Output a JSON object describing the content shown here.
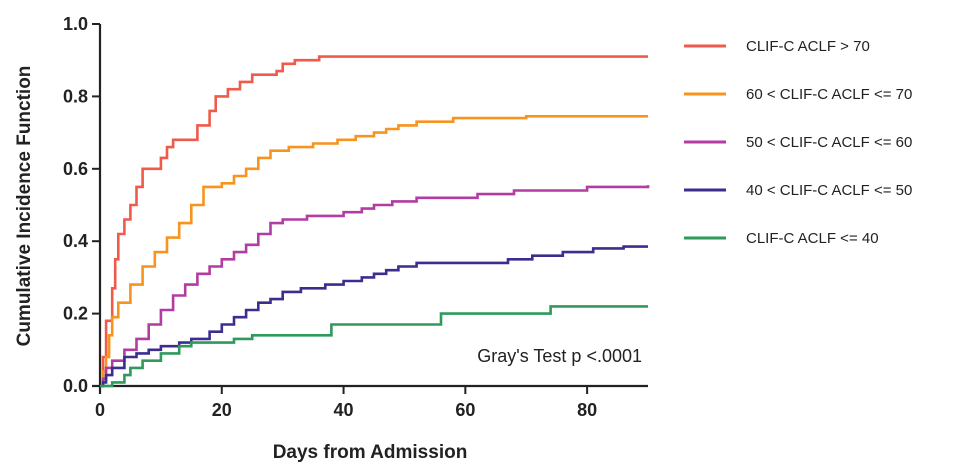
{
  "chart_data": {
    "type": "line",
    "step": true,
    "title": "",
    "xlabel": "Days from Admission",
    "ylabel": "Cumulative Incidence Function",
    "xlim": [
      0,
      90
    ],
    "ylim": [
      0,
      1.0
    ],
    "x_ticks": [
      0,
      20,
      40,
      60,
      80
    ],
    "y_ticks": [
      "0.0",
      "0.2",
      "0.4",
      "0.6",
      "0.8",
      "1.0"
    ],
    "grid": false,
    "legend_position": "right",
    "annotation": "Gray's Test p <.0001",
    "series": [
      {
        "name": "CLIF-C ACLF > 70",
        "color": "#ef5a4b",
        "points": [
          [
            0,
            0
          ],
          [
            0.5,
            0.08
          ],
          [
            1,
            0.18
          ],
          [
            2,
            0.27
          ],
          [
            2.5,
            0.35
          ],
          [
            3,
            0.42
          ],
          [
            4,
            0.46
          ],
          [
            5,
            0.5
          ],
          [
            6,
            0.55
          ],
          [
            7,
            0.6
          ],
          [
            9,
            0.6
          ],
          [
            10,
            0.63
          ],
          [
            11,
            0.66
          ],
          [
            12,
            0.68
          ],
          [
            15,
            0.68
          ],
          [
            16,
            0.72
          ],
          [
            18,
            0.76
          ],
          [
            19,
            0.8
          ],
          [
            21,
            0.82
          ],
          [
            23,
            0.84
          ],
          [
            25,
            0.86
          ],
          [
            29,
            0.87
          ],
          [
            30,
            0.89
          ],
          [
            32,
            0.9
          ],
          [
            36,
            0.91
          ],
          [
            90,
            0.91
          ]
        ]
      },
      {
        "name": "60 < CLIF-C ACLF <= 70",
        "color": "#f7941d",
        "points": [
          [
            0,
            0
          ],
          [
            0.5,
            0.04
          ],
          [
            1,
            0.08
          ],
          [
            1.5,
            0.14
          ],
          [
            2,
            0.19
          ],
          [
            3,
            0.23
          ],
          [
            5,
            0.28
          ],
          [
            7,
            0.33
          ],
          [
            9,
            0.37
          ],
          [
            11,
            0.41
          ],
          [
            13,
            0.45
          ],
          [
            15,
            0.5
          ],
          [
            17,
            0.55
          ],
          [
            20,
            0.56
          ],
          [
            22,
            0.58
          ],
          [
            24,
            0.6
          ],
          [
            26,
            0.63
          ],
          [
            28,
            0.65
          ],
          [
            31,
            0.66
          ],
          [
            35,
            0.67
          ],
          [
            39,
            0.68
          ],
          [
            42,
            0.69
          ],
          [
            45,
            0.7
          ],
          [
            47,
            0.71
          ],
          [
            49,
            0.72
          ],
          [
            52,
            0.73
          ],
          [
            58,
            0.74
          ],
          [
            70,
            0.745
          ],
          [
            90,
            0.745
          ]
        ]
      },
      {
        "name": "50 < CLIF-C ACLF <= 60",
        "color": "#b23ca2",
        "points": [
          [
            0,
            0
          ],
          [
            0.5,
            0.02
          ],
          [
            1,
            0.05
          ],
          [
            2,
            0.07
          ],
          [
            4,
            0.1
          ],
          [
            6,
            0.13
          ],
          [
            8,
            0.17
          ],
          [
            10,
            0.21
          ],
          [
            12,
            0.25
          ],
          [
            14,
            0.28
          ],
          [
            16,
            0.31
          ],
          [
            18,
            0.33
          ],
          [
            20,
            0.35
          ],
          [
            22,
            0.37
          ],
          [
            24,
            0.39
          ],
          [
            26,
            0.42
          ],
          [
            28,
            0.45
          ],
          [
            30,
            0.46
          ],
          [
            34,
            0.47
          ],
          [
            40,
            0.48
          ],
          [
            43,
            0.49
          ],
          [
            45,
            0.5
          ],
          [
            48,
            0.51
          ],
          [
            52,
            0.52
          ],
          [
            58,
            0.52
          ],
          [
            62,
            0.53
          ],
          [
            68,
            0.54
          ],
          [
            80,
            0.55
          ],
          [
            90,
            0.555
          ]
        ]
      },
      {
        "name": "40 < CLIF-C ACLF <= 50",
        "color": "#3a2f8f",
        "points": [
          [
            0,
            0
          ],
          [
            0.5,
            0.01
          ],
          [
            1,
            0.03
          ],
          [
            2,
            0.05
          ],
          [
            4,
            0.08
          ],
          [
            6,
            0.09
          ],
          [
            8,
            0.1
          ],
          [
            10,
            0.11
          ],
          [
            13,
            0.12
          ],
          [
            15,
            0.13
          ],
          [
            18,
            0.15
          ],
          [
            20,
            0.17
          ],
          [
            22,
            0.19
          ],
          [
            24,
            0.21
          ],
          [
            26,
            0.23
          ],
          [
            28,
            0.24
          ],
          [
            30,
            0.26
          ],
          [
            33,
            0.27
          ],
          [
            37,
            0.28
          ],
          [
            40,
            0.29
          ],
          [
            43,
            0.3
          ],
          [
            45,
            0.31
          ],
          [
            47,
            0.32
          ],
          [
            49,
            0.33
          ],
          [
            52,
            0.34
          ],
          [
            60,
            0.34
          ],
          [
            67,
            0.35
          ],
          [
            71,
            0.36
          ],
          [
            76,
            0.37
          ],
          [
            81,
            0.38
          ],
          [
            86,
            0.385
          ],
          [
            90,
            0.385
          ]
        ]
      },
      {
        "name": "CLIF-C ACLF <= 40",
        "color": "#2e9a5c",
        "points": [
          [
            0,
            0
          ],
          [
            2,
            0.01
          ],
          [
            4,
            0.03
          ],
          [
            5,
            0.05
          ],
          [
            7,
            0.07
          ],
          [
            10,
            0.09
          ],
          [
            13,
            0.11
          ],
          [
            15,
            0.12
          ],
          [
            22,
            0.13
          ],
          [
            25,
            0.14
          ],
          [
            38,
            0.17
          ],
          [
            56,
            0.2
          ],
          [
            74,
            0.22
          ],
          [
            90,
            0.22
          ]
        ]
      }
    ]
  }
}
